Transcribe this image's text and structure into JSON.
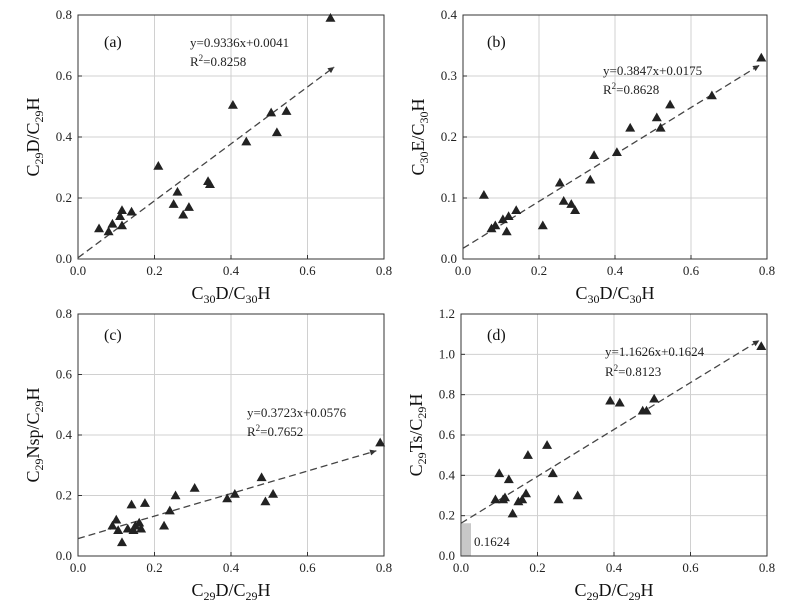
{
  "chart_data": [
    {
      "type": "scatter",
      "panel": "(a)",
      "xlabel": {
        "main": "C",
        "sub1": "30",
        "mid": "D/C",
        "sub2": "30",
        "tail": "H"
      },
      "ylabel": {
        "main": "C",
        "sub1": "29",
        "mid": "D/C",
        "sub2": "29",
        "tail": "H"
      },
      "xlim": [
        0,
        0.8
      ],
      "ylim": [
        0,
        0.8
      ],
      "xticks": [
        0,
        0.2,
        0.4,
        0.6,
        0.8
      ],
      "yticks": [
        0,
        0.2,
        0.4,
        0.6,
        0.8
      ],
      "xtick_labels": [
        "0.0",
        "0.2",
        "0.4",
        "0.6",
        "0.8"
      ],
      "ytick_labels": [
        "0.0",
        "0.2",
        "0.4",
        "0.6",
        "0.8"
      ],
      "equation": "y=0.9336x+0.0041",
      "r2": "R²=0.8258",
      "slope": 0.9336,
      "intercept": 0.0041,
      "points": [
        [
          0.055,
          0.1
        ],
        [
          0.08,
          0.09
        ],
        [
          0.09,
          0.115
        ],
        [
          0.11,
          0.14
        ],
        [
          0.115,
          0.16
        ],
        [
          0.115,
          0.11
        ],
        [
          0.14,
          0.155
        ],
        [
          0.21,
          0.305
        ],
        [
          0.25,
          0.18
        ],
        [
          0.26,
          0.22
        ],
        [
          0.275,
          0.145
        ],
        [
          0.29,
          0.17
        ],
        [
          0.34,
          0.255
        ],
        [
          0.345,
          0.245
        ],
        [
          0.405,
          0.505
        ],
        [
          0.44,
          0.385
        ],
        [
          0.505,
          0.48
        ],
        [
          0.52,
          0.415
        ],
        [
          0.545,
          0.485
        ],
        [
          0.66,
          0.79
        ]
      ]
    },
    {
      "type": "scatter",
      "panel": "(b)",
      "xlabel": {
        "main": "C",
        "sub1": "30",
        "mid": "D/C",
        "sub2": "30",
        "tail": "H"
      },
      "ylabel": {
        "main": "C",
        "sub1": "30",
        "mid": "E/C",
        "sub2": "30",
        "tail": "H"
      },
      "xlim": [
        0,
        0.8
      ],
      "ylim": [
        0,
        0.4
      ],
      "xticks": [
        0,
        0.2,
        0.4,
        0.6,
        0.8
      ],
      "yticks": [
        0,
        0.1,
        0.2,
        0.3,
        0.4
      ],
      "xtick_labels": [
        "0.0",
        "0.2",
        "0.4",
        "0.6",
        "0.8"
      ],
      "ytick_labels": [
        "0.0",
        "0.1",
        "0.2",
        "0.3",
        "0.4"
      ],
      "equation": "y=0.3847x+0.0175",
      "r2": "R²=0.8628",
      "slope": 0.3847,
      "intercept": 0.0175,
      "points": [
        [
          0.055,
          0.105
        ],
        [
          0.075,
          0.05
        ],
        [
          0.085,
          0.055
        ],
        [
          0.105,
          0.065
        ],
        [
          0.115,
          0.045
        ],
        [
          0.12,
          0.07
        ],
        [
          0.14,
          0.08
        ],
        [
          0.21,
          0.055
        ],
        [
          0.255,
          0.125
        ],
        [
          0.265,
          0.095
        ],
        [
          0.285,
          0.09
        ],
        [
          0.295,
          0.08
        ],
        [
          0.335,
          0.13
        ],
        [
          0.345,
          0.17
        ],
        [
          0.405,
          0.175
        ],
        [
          0.44,
          0.215
        ],
        [
          0.51,
          0.232
        ],
        [
          0.52,
          0.215
        ],
        [
          0.545,
          0.253
        ],
        [
          0.655,
          0.268
        ],
        [
          0.785,
          0.33
        ]
      ]
    },
    {
      "type": "scatter",
      "panel": "(c)",
      "xlabel": {
        "main": "C",
        "sub1": "29",
        "mid": "D/C",
        "sub2": "29",
        "tail": "H"
      },
      "ylabel": {
        "main": "C",
        "sub1": "29",
        "mid": "Nsp/C",
        "sub2": "29",
        "tail": "H"
      },
      "xlim": [
        0,
        0.8
      ],
      "ylim": [
        0,
        0.8
      ],
      "xticks": [
        0,
        0.2,
        0.4,
        0.6,
        0.8
      ],
      "yticks": [
        0,
        0.2,
        0.4,
        0.6,
        0.8
      ],
      "xtick_labels": [
        "0.0",
        "0.2",
        "0.4",
        "0.6",
        "0.8"
      ],
      "ytick_labels": [
        "0.0",
        "0.2",
        "0.4",
        "0.6",
        "0.8"
      ],
      "equation": "y=0.3723x+0.0576",
      "r2": "R²=0.7652",
      "slope": 0.3723,
      "intercept": 0.0576,
      "points": [
        [
          0.09,
          0.1
        ],
        [
          0.1,
          0.12
        ],
        [
          0.105,
          0.085
        ],
        [
          0.115,
          0.045
        ],
        [
          0.13,
          0.09
        ],
        [
          0.14,
          0.17
        ],
        [
          0.145,
          0.085
        ],
        [
          0.15,
          0.1
        ],
        [
          0.16,
          0.11
        ],
        [
          0.165,
          0.09
        ],
        [
          0.175,
          0.175
        ],
        [
          0.225,
          0.1
        ],
        [
          0.24,
          0.15
        ],
        [
          0.255,
          0.2
        ],
        [
          0.305,
          0.225
        ],
        [
          0.39,
          0.19
        ],
        [
          0.41,
          0.205
        ],
        [
          0.48,
          0.26
        ],
        [
          0.49,
          0.18
        ],
        [
          0.51,
          0.205
        ],
        [
          0.79,
          0.375
        ]
      ]
    },
    {
      "type": "scatter",
      "panel": "(d)",
      "xlabel": {
        "main": "C",
        "sub1": "29",
        "mid": "D/C",
        "sub2": "29",
        "tail": "H"
      },
      "ylabel": {
        "main": "C",
        "sub1": "29",
        "mid": "Ts/C",
        "sub2": "29",
        "tail": "H"
      },
      "xlim": [
        0,
        0.8
      ],
      "ylim": [
        0,
        1.2
      ],
      "xticks": [
        0,
        0.2,
        0.4,
        0.6,
        0.8
      ],
      "yticks": [
        0,
        0.2,
        0.4,
        0.6,
        0.8,
        1.0,
        1.2
      ],
      "xtick_labels": [
        "0.0",
        "0.2",
        "0.4",
        "0.6",
        "0.8"
      ],
      "ytick_labels": [
        "0.0",
        "0.2",
        "0.4",
        "0.6",
        "0.8",
        "1.0",
        "1.2"
      ],
      "equation": "y=1.1626x+0.1624",
      "r2": "R²=0.8123",
      "slope": 1.1626,
      "intercept": 0.1624,
      "intercept_label": "0.1624",
      "points": [
        [
          0.09,
          0.28
        ],
        [
          0.1,
          0.41
        ],
        [
          0.11,
          0.28
        ],
        [
          0.115,
          0.29
        ],
        [
          0.125,
          0.38
        ],
        [
          0.135,
          0.21
        ],
        [
          0.15,
          0.27
        ],
        [
          0.16,
          0.28
        ],
        [
          0.17,
          0.31
        ],
        [
          0.175,
          0.5
        ],
        [
          0.225,
          0.55
        ],
        [
          0.24,
          0.41
        ],
        [
          0.255,
          0.28
        ],
        [
          0.305,
          0.3
        ],
        [
          0.39,
          0.77
        ],
        [
          0.415,
          0.76
        ],
        [
          0.475,
          0.72
        ],
        [
          0.485,
          0.72
        ],
        [
          0.505,
          0.78
        ],
        [
          0.785,
          1.04
        ]
      ]
    }
  ]
}
